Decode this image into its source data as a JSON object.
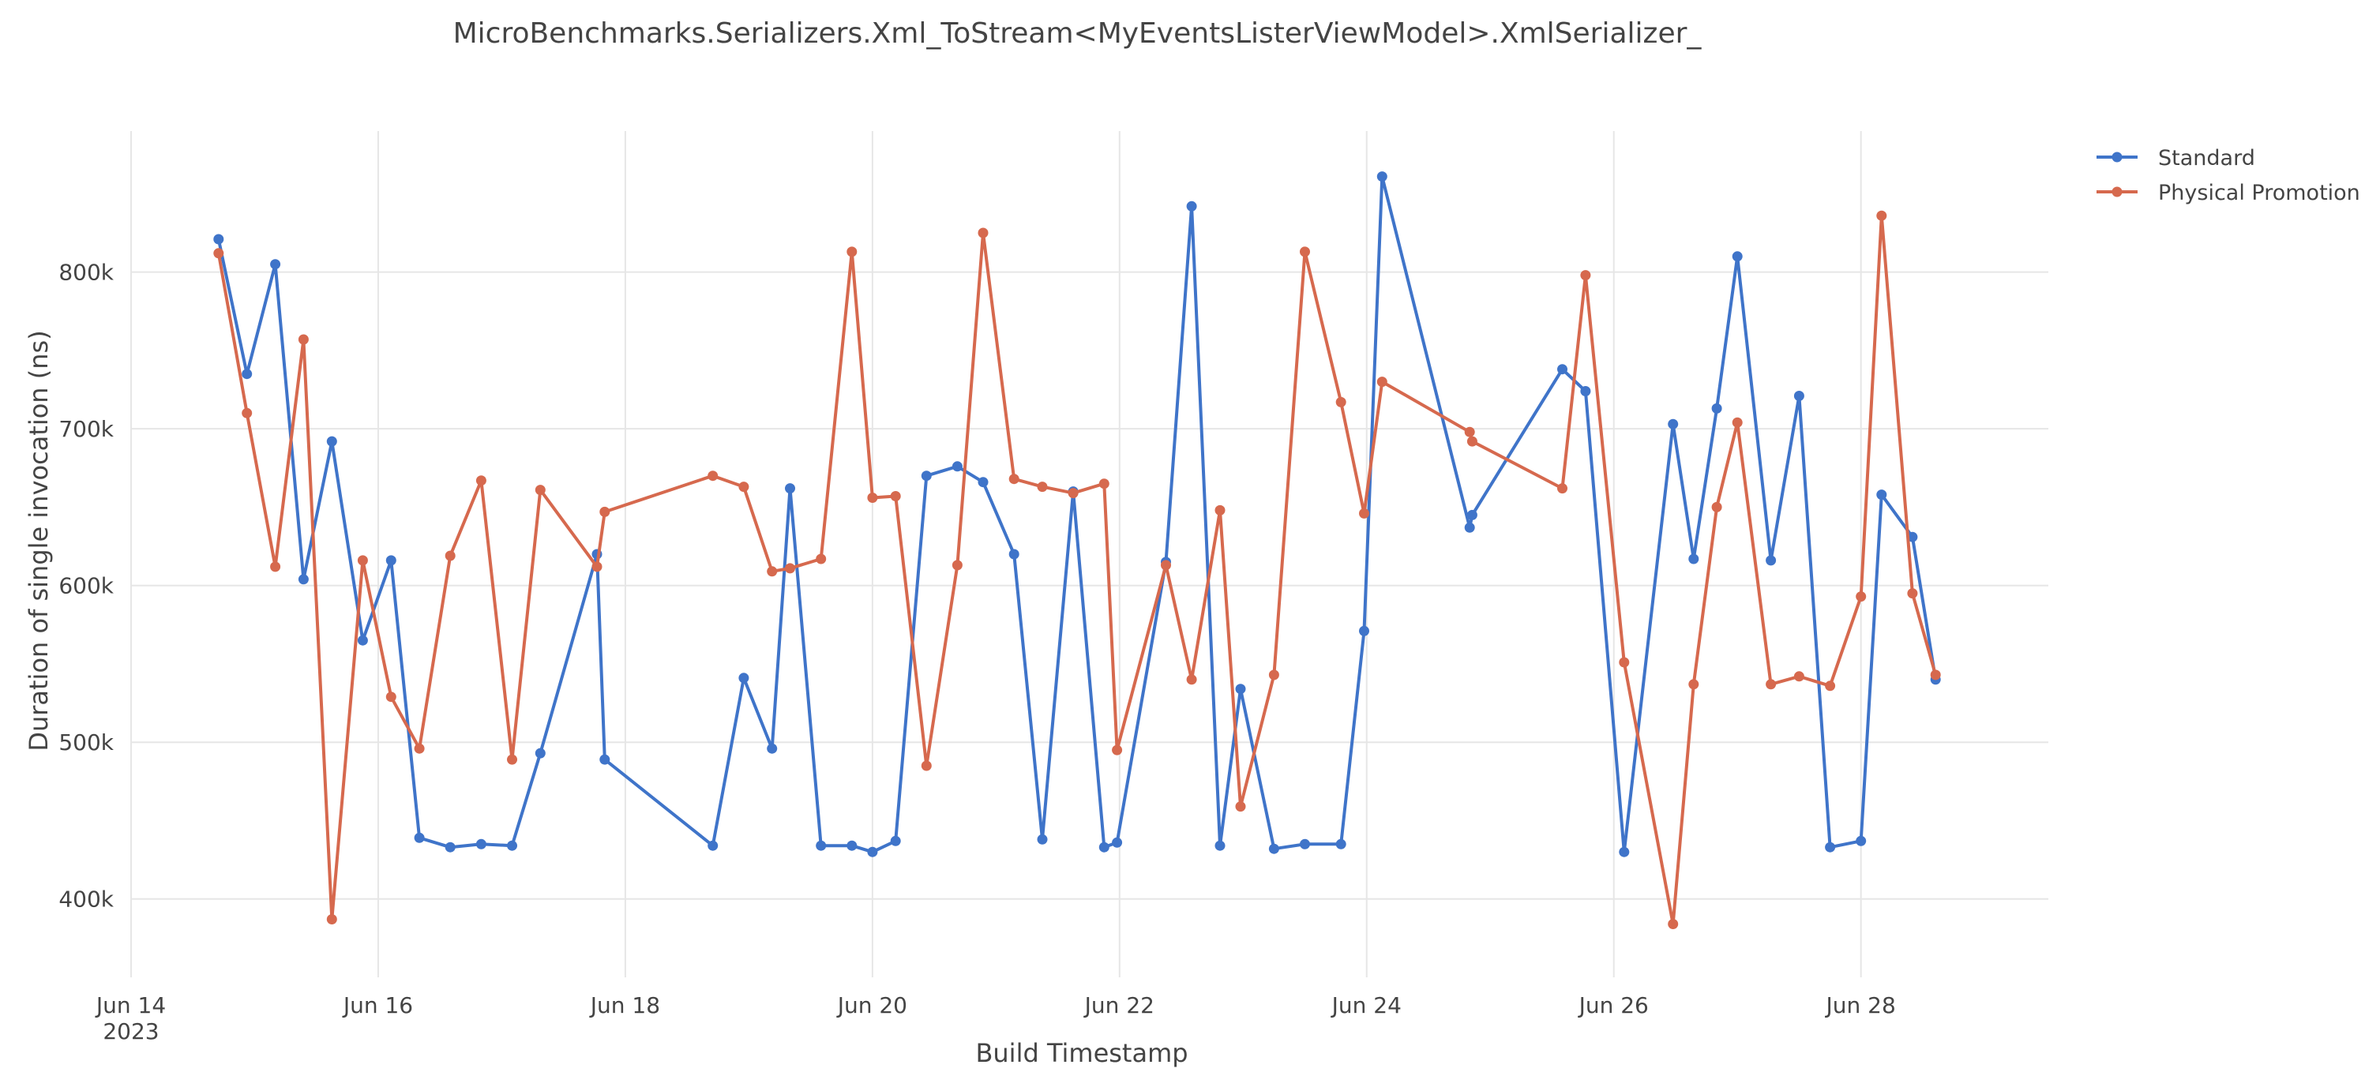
{
  "chart_data": {
    "type": "line",
    "title": "MicroBenchmarks.Serializers.Xml_ToStream<MyEventsListerViewModel>.XmlSerializer_",
    "xlabel": "Build Timestamp",
    "ylabel": "Duration of single invocation (ns)",
    "x_range": [
      "2023-06-14T00:00",
      "2023-06-29T12:24"
    ],
    "ylim": [
      350000,
      890000
    ],
    "grid": true,
    "legend_position": "top-right",
    "x_ticks": [
      {
        "value": "2023-06-14",
        "label": "Jun 14",
        "sublabel": "2023"
      },
      {
        "value": "2023-06-16",
        "label": "Jun 16"
      },
      {
        "value": "2023-06-18",
        "label": "Jun 18"
      },
      {
        "value": "2023-06-20",
        "label": "Jun 20"
      },
      {
        "value": "2023-06-22",
        "label": "Jun 22"
      },
      {
        "value": "2023-06-24",
        "label": "Jun 24"
      },
      {
        "value": "2023-06-26",
        "label": "Jun 26"
      },
      {
        "value": "2023-06-28",
        "label": "Jun 28"
      }
    ],
    "y_ticks": [
      {
        "value": 400000,
        "label": "400k"
      },
      {
        "value": 500000,
        "label": "500k"
      },
      {
        "value": 600000,
        "label": "600k"
      },
      {
        "value": 700000,
        "label": "700k"
      },
      {
        "value": 800000,
        "label": "800k"
      }
    ],
    "series": [
      {
        "name": "Standard",
        "color": "#3f74c9",
        "points": [
          [
            "2023-06-14T17:00",
            821000
          ],
          [
            "2023-06-14T22:30",
            735000
          ],
          [
            "2023-06-15T04:00",
            805000
          ],
          [
            "2023-06-15T09:30",
            604000
          ],
          [
            "2023-06-15T15:00",
            692000
          ],
          [
            "2023-06-15T21:00",
            565000
          ],
          [
            "2023-06-16T02:30",
            616000
          ],
          [
            "2023-06-16T08:00",
            439000
          ],
          [
            "2023-06-16T14:00",
            433000
          ],
          [
            "2023-06-16T20:00",
            435000
          ],
          [
            "2023-06-17T02:00",
            434000
          ],
          [
            "2023-06-17T07:30",
            493000
          ],
          [
            "2023-06-17T18:30",
            620000
          ],
          [
            "2023-06-17T20:00",
            489000
          ],
          [
            "2023-06-18T17:00",
            434000
          ],
          [
            "2023-06-18T23:00",
            541000
          ],
          [
            "2023-06-19T04:30",
            496000
          ],
          [
            "2023-06-19T08:00",
            662000
          ],
          [
            "2023-06-19T14:00",
            434000
          ],
          [
            "2023-06-19T20:00",
            434000
          ],
          [
            "2023-06-20T00:00",
            430000
          ],
          [
            "2023-06-20T04:30",
            437000
          ],
          [
            "2023-06-20T10:30",
            670000
          ],
          [
            "2023-06-20T16:30",
            676000
          ],
          [
            "2023-06-20T21:30",
            666000
          ],
          [
            "2023-06-21T03:30",
            620000
          ],
          [
            "2023-06-21T09:00",
            438000
          ],
          [
            "2023-06-21T15:00",
            660000
          ],
          [
            "2023-06-21T21:00",
            433000
          ],
          [
            "2023-06-21T23:30",
            436000
          ],
          [
            "2023-06-22T09:00",
            615000
          ],
          [
            "2023-06-22T14:00",
            842000
          ],
          [
            "2023-06-22T19:30",
            434000
          ],
          [
            "2023-06-22T23:30",
            534000
          ],
          [
            "2023-06-23T06:00",
            432000
          ],
          [
            "2023-06-23T12:00",
            435000
          ],
          [
            "2023-06-23T19:00",
            435000
          ],
          [
            "2023-06-23T23:30",
            571000
          ],
          [
            "2023-06-24T03:00",
            861000
          ],
          [
            "2023-06-24T20:00",
            637000
          ],
          [
            "2023-06-24T20:30",
            645000
          ],
          [
            "2023-06-25T14:00",
            738000
          ],
          [
            "2023-06-25T18:30",
            724000
          ],
          [
            "2023-06-26T02:00",
            430000
          ],
          [
            "2023-06-26T11:30",
            703000
          ],
          [
            "2023-06-26T15:30",
            617000
          ],
          [
            "2023-06-26T20:00",
            713000
          ],
          [
            "2023-06-27T00:00",
            810000
          ],
          [
            "2023-06-27T06:30",
            616000
          ],
          [
            "2023-06-27T12:00",
            721000
          ],
          [
            "2023-06-27T18:00",
            433000
          ],
          [
            "2023-06-28T00:00",
            437000
          ],
          [
            "2023-06-28T04:00",
            658000
          ],
          [
            "2023-06-28T10:00",
            631000
          ],
          [
            "2023-06-28T14:30",
            540000
          ]
        ]
      },
      {
        "name": "Physical Promotion",
        "color": "#d6694e",
        "points": [
          [
            "2023-06-14T17:00",
            812000
          ],
          [
            "2023-06-14T22:30",
            710000
          ],
          [
            "2023-06-15T04:00",
            612000
          ],
          [
            "2023-06-15T09:30",
            757000
          ],
          [
            "2023-06-15T15:00",
            387000
          ],
          [
            "2023-06-15T21:00",
            616000
          ],
          [
            "2023-06-16T02:30",
            529000
          ],
          [
            "2023-06-16T08:00",
            496000
          ],
          [
            "2023-06-16T14:00",
            619000
          ],
          [
            "2023-06-16T20:00",
            667000
          ],
          [
            "2023-06-17T02:00",
            489000
          ],
          [
            "2023-06-17T07:30",
            661000
          ],
          [
            "2023-06-17T18:30",
            612000
          ],
          [
            "2023-06-17T20:00",
            647000
          ],
          [
            "2023-06-18T17:00",
            670000
          ],
          [
            "2023-06-18T23:00",
            663000
          ],
          [
            "2023-06-19T04:30",
            609000
          ],
          [
            "2023-06-19T08:00",
            611000
          ],
          [
            "2023-06-19T14:00",
            617000
          ],
          [
            "2023-06-19T20:00",
            813000
          ],
          [
            "2023-06-20T00:00",
            656000
          ],
          [
            "2023-06-20T04:30",
            657000
          ],
          [
            "2023-06-20T10:30",
            485000
          ],
          [
            "2023-06-20T16:30",
            613000
          ],
          [
            "2023-06-20T21:30",
            825000
          ],
          [
            "2023-06-21T03:30",
            668000
          ],
          [
            "2023-06-21T09:00",
            663000
          ],
          [
            "2023-06-21T15:00",
            659000
          ],
          [
            "2023-06-21T21:00",
            665000
          ],
          [
            "2023-06-21T23:30",
            495000
          ],
          [
            "2023-06-22T09:00",
            613000
          ],
          [
            "2023-06-22T14:00",
            540000
          ],
          [
            "2023-06-22T19:30",
            648000
          ],
          [
            "2023-06-22T23:30",
            459000
          ],
          [
            "2023-06-23T06:00",
            543000
          ],
          [
            "2023-06-23T12:00",
            813000
          ],
          [
            "2023-06-23T19:00",
            717000
          ],
          [
            "2023-06-23T23:30",
            646000
          ],
          [
            "2023-06-24T03:00",
            730000
          ],
          [
            "2023-06-24T20:00",
            698000
          ],
          [
            "2023-06-24T20:30",
            692000
          ],
          [
            "2023-06-25T14:00",
            662000
          ],
          [
            "2023-06-25T18:30",
            798000
          ],
          [
            "2023-06-26T02:00",
            551000
          ],
          [
            "2023-06-26T11:30",
            384000
          ],
          [
            "2023-06-26T15:30",
            537000
          ],
          [
            "2023-06-26T20:00",
            650000
          ],
          [
            "2023-06-27T00:00",
            704000
          ],
          [
            "2023-06-27T06:30",
            537000
          ],
          [
            "2023-06-27T12:00",
            542000
          ],
          [
            "2023-06-27T18:00",
            536000
          ],
          [
            "2023-06-28T00:00",
            593000
          ],
          [
            "2023-06-28T04:00",
            836000
          ],
          [
            "2023-06-28T10:00",
            595000
          ],
          [
            "2023-06-28T14:30",
            543000
          ]
        ]
      }
    ]
  }
}
